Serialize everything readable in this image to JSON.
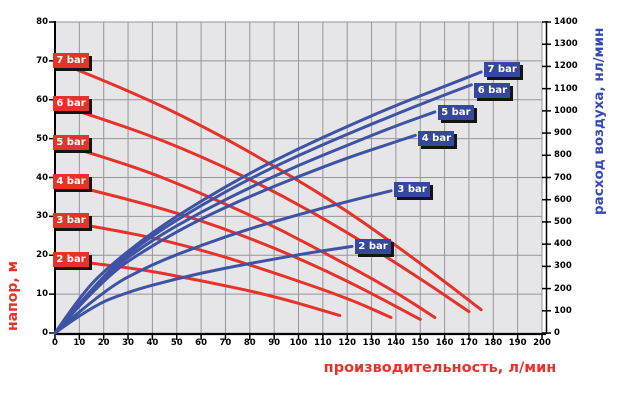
{
  "colors": {
    "red": "#e7322a",
    "blue": "#3e53a4",
    "red_tag": "#e7322a",
    "blue_tag": "#36479e",
    "red_title": "#e7322a",
    "blue_title": "#3549b8",
    "plot_bg": "#e6e5e8",
    "grid": "#95959d",
    "axis": "#000000",
    "tag_shadow": "#141414"
  },
  "chart_data": {
    "type": "line",
    "title": "",
    "x_axis": {
      "label": "производительность, л/мин",
      "min": 0,
      "max": 200,
      "tick_step": 10,
      "ticks": [
        0,
        10,
        20,
        30,
        40,
        50,
        60,
        70,
        80,
        90,
        100,
        110,
        120,
        130,
        140,
        150,
        160,
        170,
        180,
        190,
        200
      ]
    },
    "y_left_axis": {
      "label": "напор, м",
      "min": 0,
      "max": 80,
      "tick_step": 10,
      "ticks": [
        0,
        10,
        20,
        30,
        40,
        50,
        60,
        70,
        80
      ],
      "series_color": "red"
    },
    "y_right_axis": {
      "label": "расход воздуха, нл/мин",
      "min": 0,
      "max": 1400,
      "tick_step": 100,
      "ticks": [
        0,
        100,
        200,
        300,
        400,
        500,
        600,
        700,
        800,
        900,
        1000,
        1100,
        1200,
        1300,
        1400
      ],
      "series_color": "blue"
    },
    "grid": "on",
    "series": [
      {
        "name": "head-7bar",
        "bar": 7,
        "label": "7 bar",
        "axis": "left",
        "color": "red",
        "points": [
          [
            0,
            70
          ],
          [
            30,
            62.5
          ],
          [
            60,
            53.5
          ],
          [
            90,
            43
          ],
          [
            120,
            31.5
          ],
          [
            150,
            18
          ],
          [
            175,
            6
          ]
        ]
      },
      {
        "name": "head-6bar",
        "bar": 6,
        "label": "6 bar",
        "axis": "left",
        "color": "red",
        "points": [
          [
            0,
            59
          ],
          [
            30,
            53
          ],
          [
            60,
            45.5
          ],
          [
            90,
            36.5
          ],
          [
            120,
            26
          ],
          [
            150,
            14
          ],
          [
            170,
            5.5
          ]
        ]
      },
      {
        "name": "head-5bar",
        "bar": 5,
        "label": "5 bar",
        "axis": "left",
        "color": "red",
        "points": [
          [
            0,
            49
          ],
          [
            30,
            43.5
          ],
          [
            60,
            36
          ],
          [
            90,
            27.5
          ],
          [
            120,
            17.5
          ],
          [
            140,
            10.5
          ],
          [
            156,
            4
          ]
        ]
      },
      {
        "name": "head-4bar",
        "bar": 4,
        "label": "4 bar",
        "axis": "left",
        "color": "red",
        "points": [
          [
            0,
            39
          ],
          [
            30,
            34.5
          ],
          [
            60,
            29
          ],
          [
            90,
            22
          ],
          [
            120,
            13.5
          ],
          [
            150,
            3.5
          ]
        ]
      },
      {
        "name": "head-3bar",
        "bar": 3,
        "label": "3 bar",
        "axis": "left",
        "color": "red",
        "points": [
          [
            0,
            29
          ],
          [
            30,
            26
          ],
          [
            60,
            21.5
          ],
          [
            90,
            15.5
          ],
          [
            120,
            9
          ],
          [
            138,
            4
          ]
        ]
      },
      {
        "name": "head-2bar",
        "bar": 2,
        "label": "2 bar",
        "axis": "left",
        "color": "red",
        "points": [
          [
            0,
            19
          ],
          [
            30,
            17
          ],
          [
            60,
            13.5
          ],
          [
            90,
            9.5
          ],
          [
            117,
            4.5
          ]
        ]
      },
      {
        "name": "airflow-2bar",
        "bar": 2,
        "label": "2 bar",
        "axis": "right",
        "color": "blue",
        "points": [
          [
            0,
            0
          ],
          [
            15,
            120
          ],
          [
            30,
            185
          ],
          [
            50,
            245
          ],
          [
            70,
            293
          ],
          [
            90,
            333
          ],
          [
            105,
            362
          ],
          [
            122,
            390
          ]
        ]
      },
      {
        "name": "airflow-3bar",
        "bar": 3,
        "label": "3 bar",
        "axis": "right",
        "color": "blue",
        "points": [
          [
            0,
            0
          ],
          [
            20,
            195
          ],
          [
            40,
            310
          ],
          [
            60,
            395
          ],
          [
            80,
            470
          ],
          [
            100,
            533
          ],
          [
            120,
            592
          ],
          [
            138,
            640
          ]
        ]
      },
      {
        "name": "airflow-4bar",
        "bar": 4,
        "label": "4 bar",
        "axis": "right",
        "color": "blue",
        "points": [
          [
            0,
            0
          ],
          [
            20,
            250
          ],
          [
            40,
            395
          ],
          [
            60,
            515
          ],
          [
            80,
            615
          ],
          [
            100,
            705
          ],
          [
            120,
            788
          ],
          [
            135,
            843
          ],
          [
            148,
            890
          ]
        ]
      },
      {
        "name": "airflow-5bar",
        "bar": 5,
        "label": "5 bar",
        "axis": "right",
        "color": "blue",
        "points": [
          [
            0,
            0
          ],
          [
            20,
            260
          ],
          [
            40,
            420
          ],
          [
            60,
            545
          ],
          [
            80,
            655
          ],
          [
            100,
            755
          ],
          [
            120,
            845
          ],
          [
            140,
            933
          ],
          [
            156,
            995
          ]
        ]
      },
      {
        "name": "airflow-6bar",
        "bar": 6,
        "label": "6 bar",
        "axis": "right",
        "color": "blue",
        "points": [
          [
            0,
            0
          ],
          [
            20,
            270
          ],
          [
            40,
            440
          ],
          [
            60,
            575
          ],
          [
            80,
            695
          ],
          [
            100,
            800
          ],
          [
            120,
            895
          ],
          [
            140,
            985
          ],
          [
            160,
            1072
          ],
          [
            171,
            1117
          ]
        ]
      },
      {
        "name": "airflow-7bar",
        "bar": 7,
        "label": "7 bar",
        "axis": "right",
        "color": "blue",
        "points": [
          [
            0,
            0
          ],
          [
            10,
            160
          ],
          [
            20,
            280
          ],
          [
            40,
            455
          ],
          [
            60,
            595
          ],
          [
            80,
            720
          ],
          [
            100,
            830
          ],
          [
            120,
            930
          ],
          [
            140,
            1025
          ],
          [
            160,
            1110
          ],
          [
            175,
            1175
          ]
        ]
      }
    ]
  }
}
